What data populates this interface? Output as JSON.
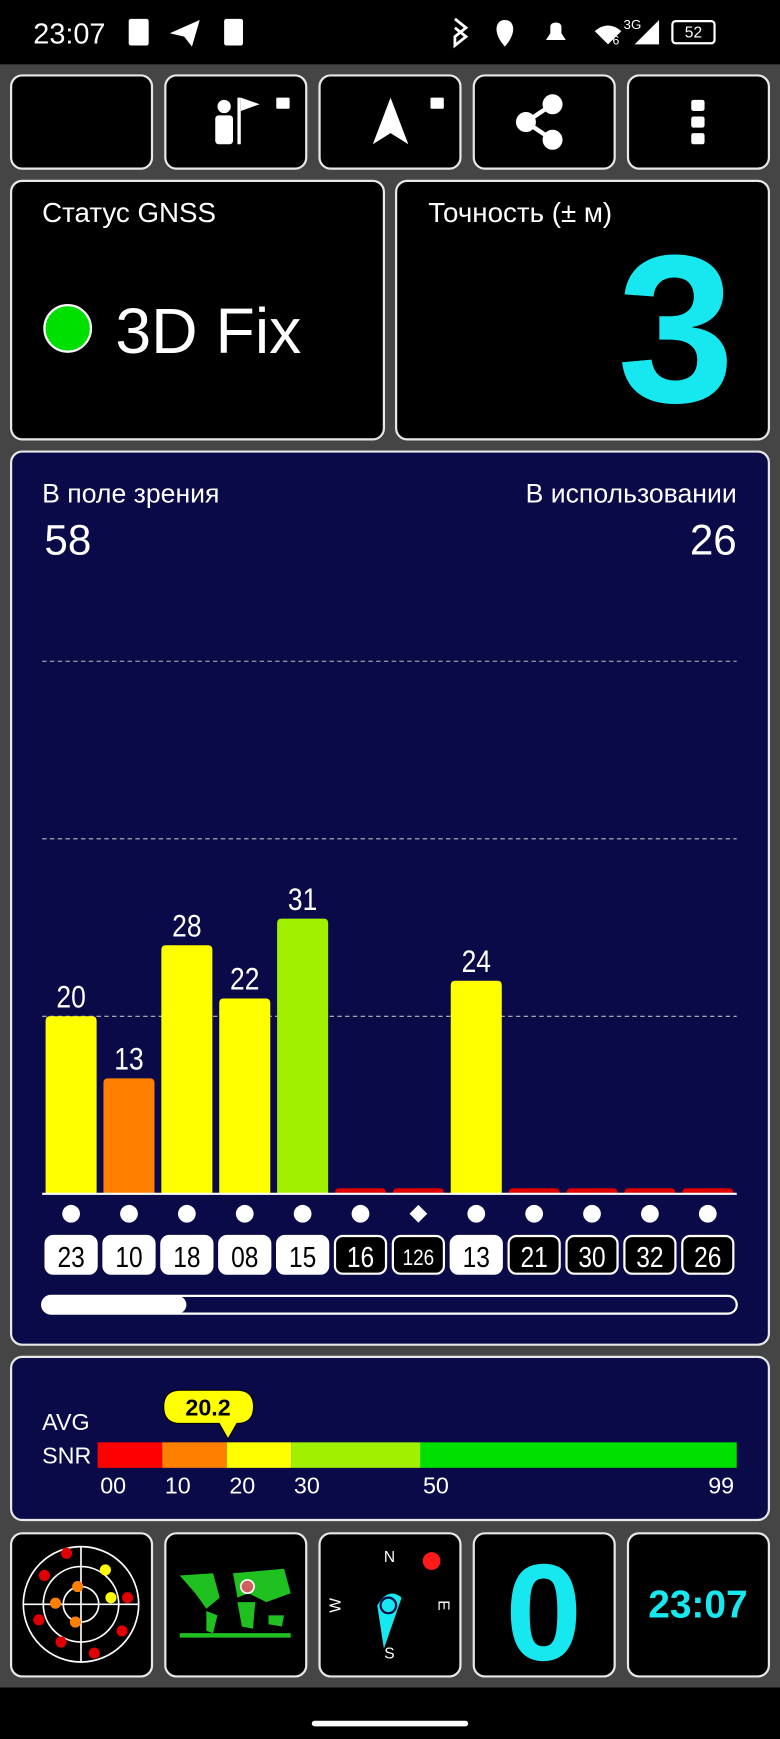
{
  "status_bar": {
    "time": "23:07",
    "network": "3G",
    "signal_sub": "6",
    "battery": "52"
  },
  "gnss_status": {
    "label": "Статус GNSS",
    "value": "3D Fix",
    "color": "#00e000"
  },
  "accuracy": {
    "label": "Точность (± м)",
    "value": 3
  },
  "satellites": {
    "in_view_label": "В поле зрения",
    "in_view": 58,
    "in_use_label": "В использовании",
    "in_use": 26
  },
  "chart_data": {
    "type": "bar",
    "categories": [
      "23",
      "10",
      "18",
      "08",
      "15",
      "16",
      "126",
      "13",
      "21",
      "30",
      "32",
      "26"
    ],
    "values": [
      20,
      13,
      28,
      22,
      31,
      0,
      0,
      24,
      0,
      0,
      0,
      0
    ],
    "colors": [
      "#ffff00",
      "#ff8000",
      "#ffff00",
      "#ffff00",
      "#a0f000",
      "#e00000",
      "#e00000",
      "#ffff00",
      "#e00000",
      "#e00000",
      "#e00000",
      "#e00000"
    ],
    "markers": [
      "circle",
      "circle",
      "circle",
      "circle",
      "circle",
      "circle",
      "diamond",
      "circle",
      "circle",
      "circle",
      "circle",
      "circle"
    ],
    "used": [
      true,
      true,
      true,
      true,
      true,
      false,
      false,
      true,
      false,
      false,
      false,
      false
    ],
    "ylim": [
      0,
      60
    ],
    "yticks": [
      20,
      40,
      60
    ],
    "grid": true
  },
  "avg_snr": {
    "label_1": "AVG",
    "label_2": "SNR",
    "value": 20.2,
    "xlim": [
      0,
      99
    ],
    "xticks": [
      {
        "value": 0,
        "label": "00"
      },
      10,
      20,
      30,
      50,
      99
    ],
    "bands": [
      {
        "from": 0,
        "to": 10,
        "color": "#ff0000"
      },
      {
        "from": 10,
        "to": 20,
        "color": "#ff8000"
      },
      {
        "from": 20,
        "to": 30,
        "color": "#ffff00"
      },
      {
        "from": 30,
        "to": 50,
        "color": "#a0f000"
      },
      {
        "from": 50,
        "to": 99,
        "color": "#00e000"
      }
    ]
  },
  "bottom": {
    "speed": 0,
    "clock": "23:07",
    "compass": [
      "N",
      "E",
      "S",
      "W"
    ]
  }
}
